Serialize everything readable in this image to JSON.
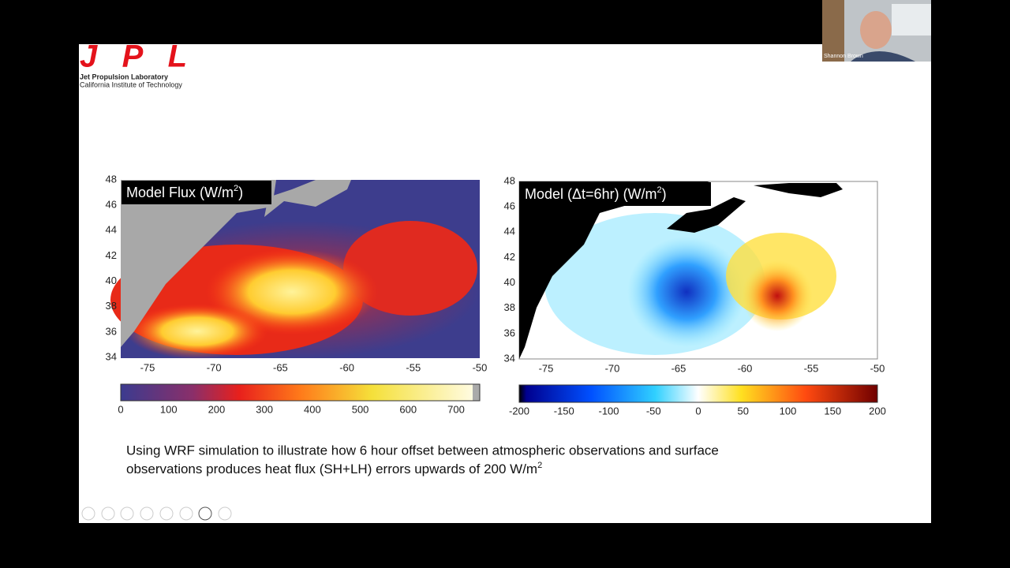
{
  "logo": {
    "name": "JPL",
    "line1": "Jet Propulsion Laboratory",
    "line2": "California Institute of Technology"
  },
  "participant": {
    "name": "Shannon Brown"
  },
  "panels": [
    {
      "title": "Model Flux (W/m",
      "title_sup": "2",
      "title_end": ")",
      "y_ticks": [
        48,
        46,
        44,
        42,
        40,
        38,
        36,
        34
      ],
      "x_ticks": [
        -75,
        -70,
        -65,
        -60,
        -55,
        -50
      ],
      "colorbar_ticks": [
        0,
        100,
        200,
        300,
        400,
        500,
        600,
        700
      ]
    },
    {
      "title": "Model (Δt=6hr) (W/m",
      "title_sup": "2",
      "title_end": ")",
      "y_ticks": [
        48,
        46,
        44,
        42,
        40,
        38,
        36,
        34
      ],
      "x_ticks": [
        -75,
        -70,
        -65,
        -60,
        -55,
        -50
      ],
      "colorbar_ticks": [
        -200,
        -150,
        -100,
        -50,
        0,
        50,
        100,
        150,
        200
      ]
    }
  ],
  "caption": {
    "line1": "Using WRF simulation to illustrate how 6 hour offset between atmospheric observations and surface",
    "line2": "observations produces heat flux (SH+LH) errors upwards of 200 W/m",
    "sup": "2"
  }
}
